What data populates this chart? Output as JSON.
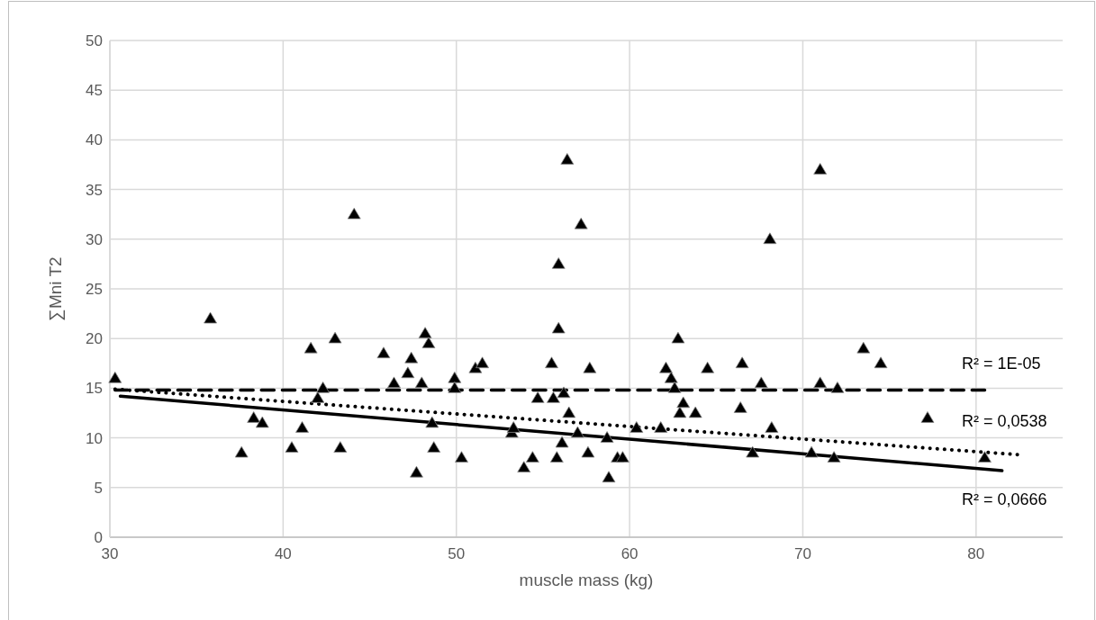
{
  "chart_data": {
    "type": "scatter",
    "xlabel": "muscle mass (kg)",
    "ylabel": "∑Mni T2",
    "xlim": [
      30,
      85
    ],
    "xticks": [
      30,
      40,
      50,
      60,
      70,
      80
    ],
    "ylim": [
      0,
      50
    ],
    "yticks": [
      0,
      5,
      10,
      15,
      20,
      25,
      30,
      35,
      40,
      45,
      50
    ],
    "grid": true,
    "series": [
      {
        "marker": "triangle",
        "color": "#000000",
        "x": [
          30.3,
          35.8,
          37.6,
          38.3,
          38.8,
          40.5,
          41.1,
          41.6,
          42,
          42.3,
          43,
          43.3,
          44.1,
          45.8,
          46.4,
          47.2,
          47.4,
          47.7,
          48,
          48.2,
          48.4,
          48.6,
          48.7,
          49.9,
          49.9,
          50.3,
          51.1,
          51.5,
          53.2,
          53.3,
          53.9,
          54.4,
          54.7,
          55.5,
          55.6,
          55.8,
          55.9,
          55.9,
          56.1,
          56.2,
          56.4,
          56.5,
          57,
          57.2,
          57.6,
          57.7,
          58.7,
          58.8,
          59.3,
          59.6,
          60.4,
          61.8,
          62.1,
          62.4,
          62.6,
          62.8,
          62.9,
          63.1,
          63.8,
          64.5,
          66.4,
          66.5,
          67.1,
          67.6,
          68.1,
          68.2,
          70.5,
          71,
          71,
          71.8,
          72,
          73.5,
          74.5,
          77.2,
          80.5
        ],
        "values": [
          16,
          22,
          8.5,
          12,
          11.5,
          9,
          11,
          19,
          14,
          15,
          20,
          9,
          32.5,
          18.5,
          15.5,
          16.5,
          18,
          6.5,
          15.5,
          20.5,
          19.5,
          11.5,
          9,
          16,
          15,
          8,
          17,
          17.5,
          10.5,
          11,
          7,
          8,
          14,
          17.5,
          14,
          8,
          21,
          27.5,
          9.5,
          14.5,
          38,
          12.5,
          10.5,
          31.5,
          8.5,
          17,
          10,
          6,
          8,
          8,
          11,
          11,
          17,
          16,
          15,
          20,
          12.5,
          13.5,
          12.5,
          17,
          13,
          17.5,
          8.5,
          15.5,
          30,
          11,
          8.5,
          37,
          15.5,
          8,
          15,
          19,
          17.5,
          12,
          8
        ]
      },
      {
        "type": "line",
        "color": "#000000",
        "line_style": "dashed",
        "x": [
          30.3,
          80.5
        ],
        "values": [
          14.8,
          14.8
        ]
      },
      {
        "type": "line",
        "color": "#000000",
        "line_style": "dotted",
        "x": [
          30.3,
          82.5
        ],
        "values": [
          14.9,
          8.3
        ]
      },
      {
        "type": "line",
        "color": "#000000",
        "line_style": "solid",
        "x": [
          30.6,
          81.5
        ],
        "values": [
          14.2,
          6.7
        ]
      }
    ],
    "annotations": [
      "R² = 1E-05",
      "R² = 0,0538",
      "R² = 0,0666"
    ]
  }
}
